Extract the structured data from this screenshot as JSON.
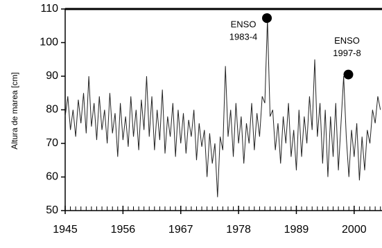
{
  "chart_data": {
    "type": "line",
    "y_label": "Altura de marea [cm]",
    "x": [
      1945,
      1945.5,
      1946,
      1946.5,
      1947,
      1947.5,
      1948,
      1948.5,
      1949,
      1949.5,
      1950,
      1950.5,
      1951,
      1951.5,
      1952,
      1952.5,
      1953,
      1953.5,
      1954,
      1954.5,
      1955,
      1955.5,
      1956,
      1956.5,
      1957,
      1957.5,
      1958,
      1958.5,
      1959,
      1959.5,
      1960,
      1960.5,
      1961,
      1961.5,
      1962,
      1962.5,
      1963,
      1963.5,
      1964,
      1964.5,
      1965,
      1965.5,
      1966,
      1966.5,
      1967,
      1967.5,
      1968,
      1968.5,
      1969,
      1969.5,
      1970,
      1970.5,
      1971,
      1971.5,
      1972,
      1972.5,
      1973,
      1973.5,
      1974,
      1974.5,
      1975,
      1975.5,
      1976,
      1976.5,
      1977,
      1977.5,
      1978,
      1978.5,
      1979,
      1979.5,
      1980,
      1980.5,
      1981,
      1981.5,
      1982,
      1982.5,
      1983,
      1983.5,
      1984,
      1984.5,
      1985,
      1985.5,
      1986,
      1986.5,
      1987,
      1987.5,
      1988,
      1988.5,
      1989,
      1989.5,
      1990,
      1990.5,
      1991,
      1991.5,
      1992,
      1992.5,
      1993,
      1993.5,
      1994,
      1994.5,
      1995,
      1995.5,
      1996,
      1996.5,
      1997,
      1997.5,
      1998,
      1998.5,
      1999,
      1999.5,
      2000,
      2000.5,
      2001,
      2001.5,
      2002,
      2002.5,
      2003,
      2003.5,
      2004,
      2004.5,
      2005
    ],
    "series": [
      {
        "color": "#222222",
        "values": [
          78,
          84,
          74,
          80,
          72,
          83,
          76,
          85,
          73,
          90,
          75,
          82,
          71,
          84,
          74,
          80,
          70,
          85,
          73,
          79,
          66,
          82,
          71,
          78,
          69,
          84,
          72,
          80,
          68,
          83,
          74,
          90,
          72,
          84,
          68,
          80,
          71,
          86,
          67,
          78,
          72,
          82,
          66,
          80,
          70,
          79,
          67,
          77,
          72,
          80,
          65,
          76,
          69,
          74,
          60,
          73,
          64,
          70,
          54,
          72,
          68,
          93,
          72,
          80,
          66,
          82,
          70,
          78,
          64,
          76,
          70,
          82,
          68,
          79,
          72,
          84,
          82,
          107,
          78,
          80,
          68,
          76,
          64,
          78,
          70,
          82,
          66,
          74,
          62,
          80,
          66,
          78,
          70,
          84,
          74,
          95,
          72,
          82,
          64,
          80,
          60,
          78,
          66,
          82,
          62,
          76,
          90,
          72,
          60,
          74,
          66,
          76,
          59,
          72,
          62,
          74,
          70,
          80,
          76,
          84,
          80
        ]
      }
    ],
    "annotations": [
      {
        "lines": [
          "ENSO",
          "1983-4"
        ],
        "x": 1983.4,
        "y": 107.3
      },
      {
        "lines": [
          "ENSO",
          "1997-8"
        ],
        "x": 1998.9,
        "y": 90.5
      }
    ],
    "xlim": [
      1945,
      2005.3
    ],
    "ylim": [
      50,
      110
    ],
    "xticks": [
      1945,
      1956,
      1967,
      1978,
      1989,
      2000
    ],
    "xminorticks": [
      1946,
      1947,
      1948,
      1949,
      1950,
      1951,
      1952,
      1953,
      1954,
      1955,
      1957,
      1958,
      1959,
      1960,
      1961,
      1962,
      1963,
      1964,
      1965,
      1966,
      1968,
      1969,
      1970,
      1971,
      1972,
      1973,
      1974,
      1975,
      1976,
      1977,
      1979,
      1980,
      1981,
      1982,
      1983,
      1984,
      1985,
      1986,
      1987,
      1988,
      1990,
      1991,
      1992,
      1993,
      1994,
      1995,
      1996,
      1997,
      1998,
      1999,
      2001,
      2002,
      2003,
      2004,
      2005
    ],
    "yticks": [
      50,
      60,
      70,
      80,
      90,
      100,
      110
    ]
  }
}
